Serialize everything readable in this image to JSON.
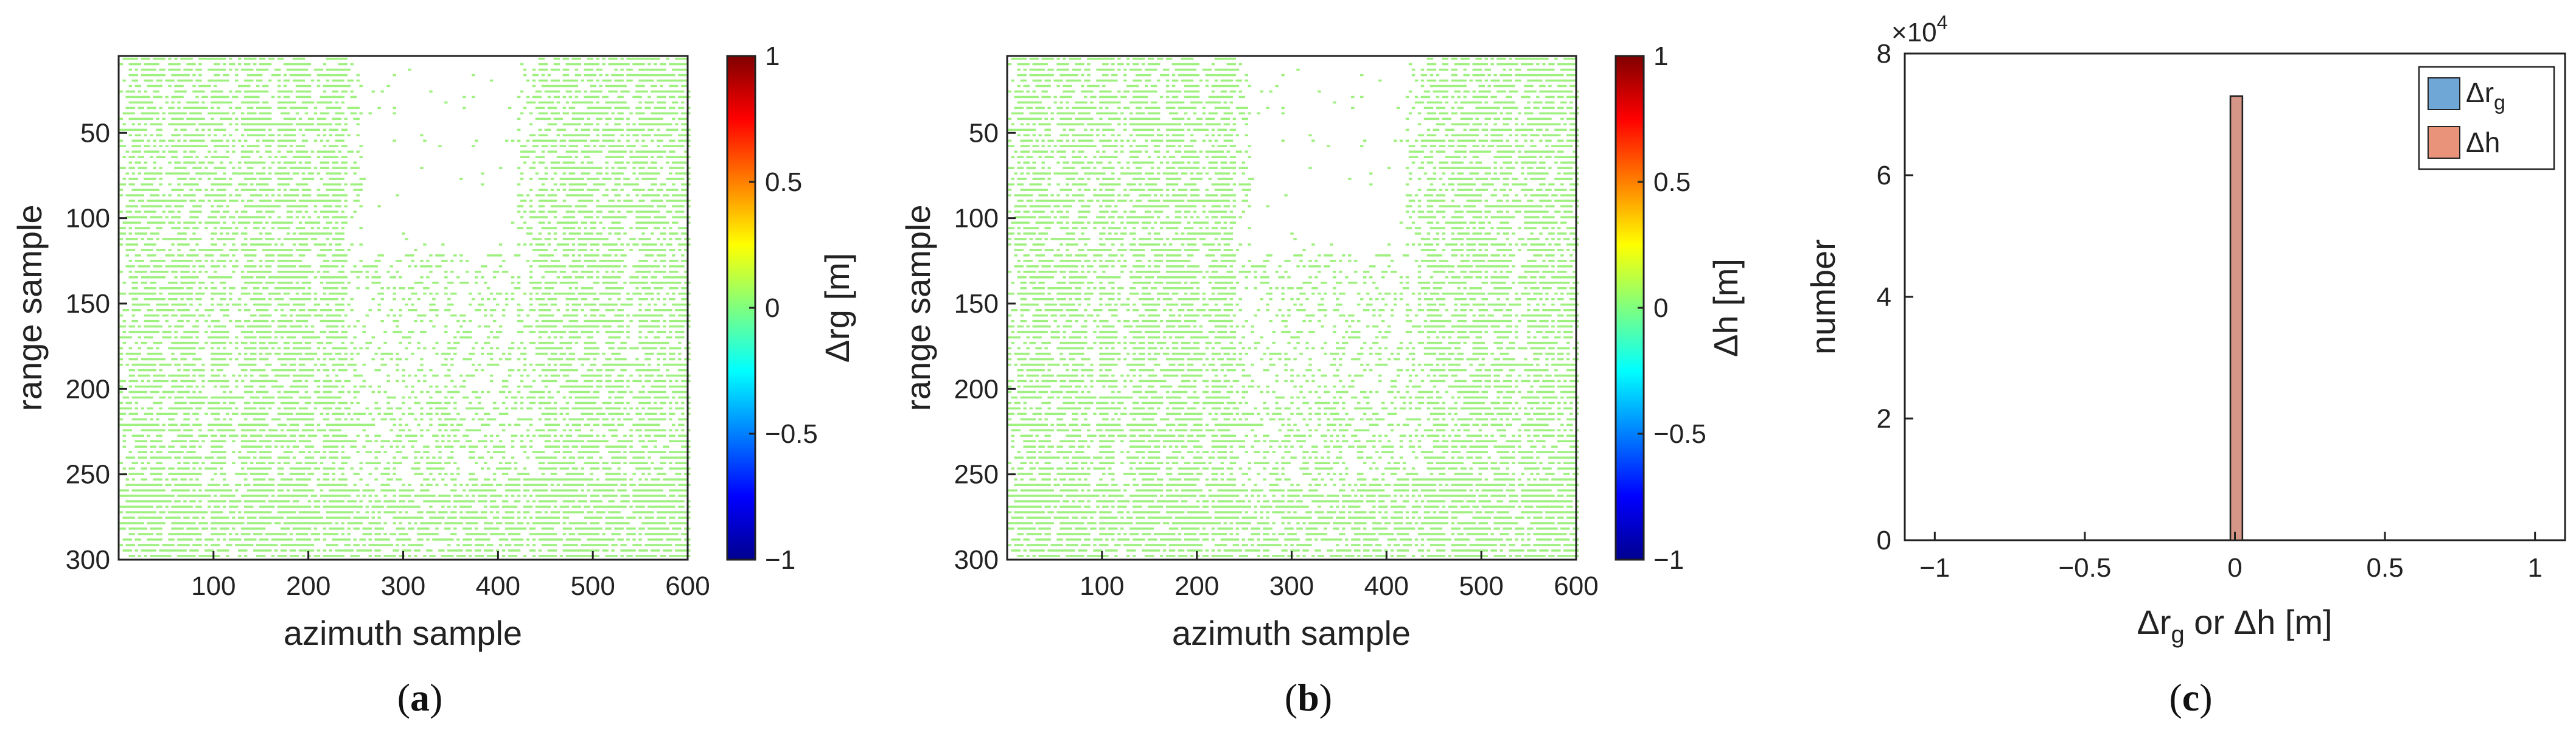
{
  "chart_data": [
    {
      "type": "heatmap",
      "panel_label": "a",
      "xlabel": "azimuth sample",
      "ylabel": "range sample",
      "xlim": [
        0,
        600
      ],
      "ylim": [
        300,
        5
      ],
      "xticks": [
        100,
        200,
        300,
        400,
        500,
        600
      ],
      "yticks": [
        50,
        100,
        150,
        200,
        250,
        300
      ],
      "colorbar": {
        "label": "Δrg [m]",
        "range": [
          -1,
          1
        ],
        "ticks": [
          "1",
          "0.5",
          "0",
          "−0.5",
          "−1"
        ],
        "tick_values": [
          1,
          0.5,
          0,
          -0.5,
          -1
        ],
        "colormap": "jet"
      },
      "uniform_value": 0
    },
    {
      "type": "heatmap",
      "panel_label": "b",
      "xlabel": "azimuth sample",
      "ylabel": "range sample",
      "xlim": [
        0,
        600
      ],
      "ylim": [
        300,
        5
      ],
      "xticks": [
        100,
        200,
        300,
        400,
        500,
        600
      ],
      "yticks": [
        50,
        100,
        150,
        200,
        250,
        300
      ],
      "colorbar": {
        "label": "Δh [m]",
        "range": [
          -1,
          1
        ],
        "ticks": [
          "1",
          "0.5",
          "0",
          "−0.5",
          "−1"
        ],
        "tick_values": [
          1,
          0.5,
          0,
          -0.5,
          -1
        ],
        "colormap": "jet"
      },
      "uniform_value": 0
    },
    {
      "type": "bar",
      "panel_label": "c",
      "xlabel_parts": [
        "Δr",
        "g",
        " or Δh [m]"
      ],
      "ylabel": "number",
      "xlim": [
        -1.1,
        1.1
      ],
      "ylim": [
        0,
        8
      ],
      "y_multiplier": "×10",
      "y_multiplier_exp": "4",
      "xticks": [
        -1,
        -0.5,
        0,
        0.5,
        1
      ],
      "xtick_labels": [
        "−1",
        "−0.5",
        "0",
        "0.5",
        "1"
      ],
      "yticks": [
        0,
        2,
        4,
        6,
        8
      ],
      "series": [
        {
          "name": "Δr",
          "subscript": "g",
          "color": "#6fa7d6",
          "bin_center": 0,
          "value": 7.3
        },
        {
          "name": "Δh",
          "subscript": "",
          "color": "#e8937a",
          "bin_center": 0,
          "value": 7.3
        }
      ],
      "legend_position": "top-right"
    }
  ],
  "colors": {
    "point_green": "#9ef07f",
    "axis": "#222222"
  }
}
